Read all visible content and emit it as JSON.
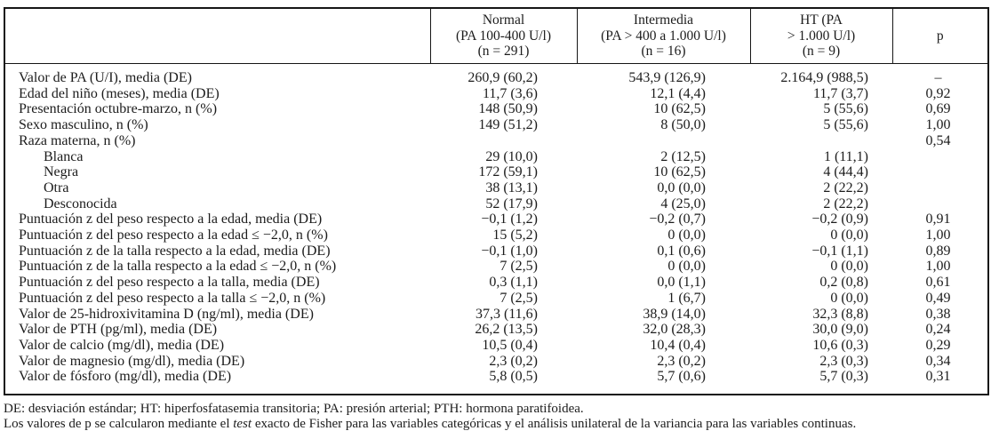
{
  "header": {
    "stub": "",
    "col_normal": {
      "line1": "Normal",
      "line2": "(PA 100-400 U/l)",
      "line3": "(n = 291)"
    },
    "col_intermedia": {
      "line1": "Intermedia",
      "line2": "(PA > 400 a 1.000 U/l)",
      "line3": "(n = 16)"
    },
    "col_ht": {
      "line1": "HT (PA",
      "line2": "> 1.000 U/l)",
      "line3": "(n = 9)"
    },
    "col_p": {
      "line1": "p"
    }
  },
  "rows": [
    {
      "label": "Valor de PA (U/I), media (DE)",
      "indent": false,
      "normal": "260,9 (60,2)",
      "intermedia": "543,9 (126,9)",
      "ht": "2.164,9 (988,5)",
      "p": "–"
    },
    {
      "label": "Edad del niño (meses), media (DE)",
      "indent": false,
      "normal": "11,7 (3,6)",
      "intermedia": "12,1 (4,4)",
      "ht": "11,7 (3,7)",
      "p": "0,92"
    },
    {
      "label": "Presentación octubre-marzo, n (%)",
      "indent": false,
      "normal": "148 (50,9)",
      "intermedia": "10 (62,5)",
      "ht": "5 (55,6)",
      "p": "0,69"
    },
    {
      "label": "Sexo masculino, n (%)",
      "indent": false,
      "normal": "149 (51,2)",
      "intermedia": "8 (50,0)",
      "ht": "5 (55,6)",
      "p": "1,00"
    },
    {
      "label": "Raza materna, n (%)",
      "indent": false,
      "normal": "",
      "intermedia": "",
      "ht": "",
      "p": "0,54"
    },
    {
      "label": "Blanca",
      "indent": true,
      "normal": "29 (10,0)",
      "intermedia": "2 (12,5)",
      "ht": "1 (11,1)",
      "p": ""
    },
    {
      "label": "Negra",
      "indent": true,
      "normal": "172 (59,1)",
      "intermedia": "10 (62,5)",
      "ht": "4 (44,4)",
      "p": ""
    },
    {
      "label": "Otra",
      "indent": true,
      "normal": "38 (13,1)",
      "intermedia": "0,0 (0,0)",
      "ht": "2 (22,2)",
      "p": ""
    },
    {
      "label": "Desconocida",
      "indent": true,
      "normal": "52 (17,9)",
      "intermedia": "4 (25,0)",
      "ht": "2 (22,2)",
      "p": ""
    },
    {
      "label": "Puntuación z del peso respecto a la edad, media (DE)",
      "indent": false,
      "normal": "−0,1 (1,2)",
      "intermedia": "−0,2 (0,7)",
      "ht": "−0,2 (0,9)",
      "p": "0,91"
    },
    {
      "label": "Puntuación z del peso respecto a la edad ≤ −2,0, n (%)",
      "indent": false,
      "normal": "15 (5,2)",
      "intermedia": "0 (0,0)",
      "ht": "0 (0,0)",
      "p": "1,00"
    },
    {
      "label": "Puntuación z de la talla respecto a la edad, media (DE)",
      "indent": false,
      "normal": "−0,1 (1,0)",
      "intermedia": "0,1 (0,6)",
      "ht": "−0,1 (1,1)",
      "p": "0,89"
    },
    {
      "label": "Puntuación z de la talla respecto a la edad ≤ −2,0, n (%)",
      "indent": false,
      "normal": "7 (2,5)",
      "intermedia": "0 (0,0)",
      "ht": "0 (0,0)",
      "p": "1,00"
    },
    {
      "label": "Puntuación z del peso respecto a la talla, media (DE)",
      "indent": false,
      "normal": "0,3 (1,1)",
      "intermedia": "0,0 (1,1)",
      "ht": "0,2 (0,8)",
      "p": "0,61"
    },
    {
      "label": "Puntuación z del peso respecto a la talla ≤ −2,0, n (%)",
      "indent": false,
      "normal": "7 (2,5)",
      "intermedia": "1 (6,7)",
      "ht": "0 (0,0)",
      "p": "0,49"
    },
    {
      "label": "Valor de 25-hidroxivitamina D (ng/ml), media (DE)",
      "indent": false,
      "normal": "37,3 (11,6)",
      "intermedia": "38,9 (14,0)",
      "ht": "32,3 (8,8)",
      "p": "0,38"
    },
    {
      "label": "Valor de PTH (pg/ml), media (DE)",
      "indent": false,
      "normal": "26,2 (13,5)",
      "intermedia": "32,0 (28,3)",
      "ht": "30,0 (9,0)",
      "p": "0,24"
    },
    {
      "label": "Valor de calcio (mg/dl), media (DE)",
      "indent": false,
      "normal": "10,5 (0,4)",
      "intermedia": "10,4 (0,4)",
      "ht": "10,6 (0,3)",
      "p": "0,29"
    },
    {
      "label": "Valor de magnesio (mg/dl), media (DE)",
      "indent": false,
      "normal": "2,3 (0,2)",
      "intermedia": "2,3 (0,2)",
      "ht": "2,3 (0,3)",
      "p": "0,34"
    },
    {
      "label": "Valor de fósforo (mg/dl), media (DE)",
      "indent": false,
      "normal": "5,8 (0,5)",
      "intermedia": "5,7 (0,6)",
      "ht": "5,7 (0,3)",
      "p": "0,31"
    }
  ],
  "footnotes": {
    "line1": "DE: desviación estándar; HT: hiperfosfatasemia transitoria; PA: presión arterial; PTH: hormona paratifoidea.",
    "line2_prefix": "Los valores de p se calcularon mediante el ",
    "line2_italic": "test",
    "line2_suffix": " exacto de Fisher para las variables categóricas y el análisis unilateral de la variancia para las variables continuas."
  },
  "colors": {
    "text": "#1c1c1c",
    "border": "#161616",
    "background": "#ffffff"
  }
}
